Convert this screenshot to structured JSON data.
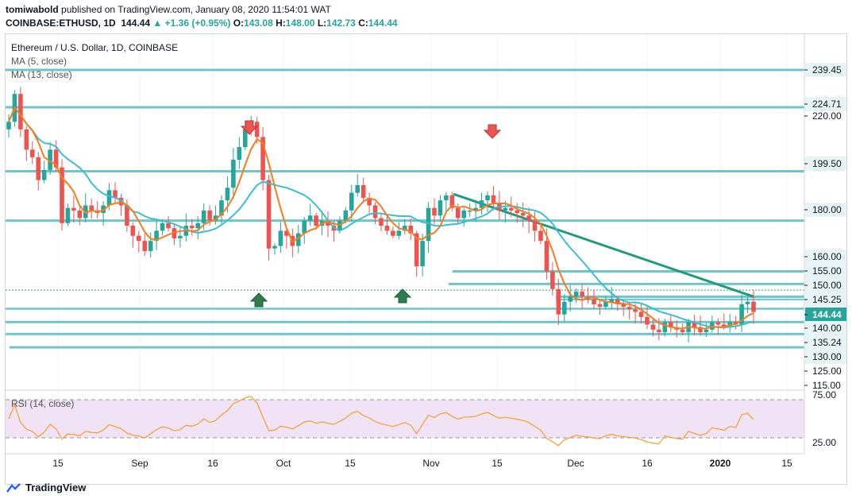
{
  "header": {
    "author": "tomiwabold",
    "published": "published on TradingView.com, January 08, 2020 11:54:01 WAT",
    "symbol": "COINBASE:ETHUSD, 1D",
    "last": "144.44",
    "change": "+1.36 (+0.95%)",
    "o_label": "O:",
    "o": "143.08",
    "h_label": "H:",
    "h": "148.00",
    "l_label": "L:",
    "l": "142.73",
    "c_label": "C:",
    "c": "144.44"
  },
  "legend": {
    "title": "Ethereum / U.S. Dollar, 1D, COINBASE",
    "ma5": "MA (5, close)",
    "ma13": "MA (13, close)",
    "rsi": "RSI (14, close)"
  },
  "footer": {
    "brand": "TradingView"
  },
  "colors": {
    "up": "#26a69a",
    "down": "#ef5350",
    "ma5": "#f57c1f",
    "ma13": "#3bbfd0",
    "level": "#6ec6cc",
    "trend": "#1f9a7a",
    "rsi": "#f4a53a",
    "rsiband": "#f0e3f6"
  },
  "chart_data": {
    "type": "candlestick",
    "y_ticks": [
      "239.45",
      "224.71",
      "220.00",
      "199.50",
      "180.00",
      "160.00",
      "155.00",
      "150.00",
      "145.25",
      "144.44",
      "140.00",
      "135.24",
      "130.00",
      "125.00",
      "115.00"
    ],
    "x_ticks": [
      "15",
      "Sep",
      "16",
      "Oct",
      "15",
      "Nov",
      "15",
      "Dec",
      "16",
      "2020",
      "15"
    ],
    "horizontal_levels": [
      239.45,
      224.71,
      199.5,
      180.0,
      160.0,
      155.0,
      150.0,
      145.25,
      144.44,
      140.0,
      135.24,
      130.0
    ],
    "last_price": 144.44,
    "trendline": {
      "from": {
        "date": "Nov 06 2019",
        "price": 190.5
      },
      "to": {
        "date": "Jan 07 2020",
        "price": 150.0
      }
    },
    "sell_arrows": [
      "Sep 21 2019",
      "Nov 12 2019"
    ],
    "buy_arrows": [
      "Sep 24 2019",
      "Oct 24 2019"
    ],
    "closes": [
      219,
      230,
      216,
      208,
      205,
      196,
      200,
      208,
      201,
      179,
      185,
      184,
      181,
      186,
      184,
      183,
      186,
      192,
      189,
      186,
      178,
      174,
      172,
      168,
      172,
      176,
      179,
      177,
      173,
      174,
      178,
      177,
      179,
      184,
      180,
      182,
      188,
      193,
      204,
      209,
      216,
      219,
      213,
      196,
      169,
      170,
      176,
      174,
      170,
      175,
      180,
      182,
      178,
      180,
      178,
      176,
      180,
      184,
      191,
      194,
      189,
      186,
      181,
      178,
      176,
      174,
      176,
      178,
      175,
      162,
      172,
      185,
      182,
      188,
      190,
      185,
      181,
      184,
      184,
      185,
      188,
      190,
      187,
      184,
      185,
      184,
      183,
      182,
      180,
      176,
      172,
      160,
      153,
      143,
      148,
      150,
      152,
      150,
      149,
      147,
      146,
      148,
      149,
      147,
      146,
      145,
      144,
      142,
      139,
      137,
      136,
      140,
      138,
      137,
      136,
      140,
      138,
      136,
      137,
      140,
      139,
      138,
      140,
      139,
      147,
      148,
      144
    ],
    "rsi": {
      "ylim": [
        0,
        100
      ],
      "ticks": [
        "75.00",
        "25.00"
      ],
      "overbought": 70,
      "oversold": 30
    },
    "series": [
      {
        "name": "MA (5, close)"
      },
      {
        "name": "MA (13, close)"
      },
      {
        "name": "RSI (14, close)"
      }
    ],
    "xlabel": "",
    "ylabel": ""
  }
}
